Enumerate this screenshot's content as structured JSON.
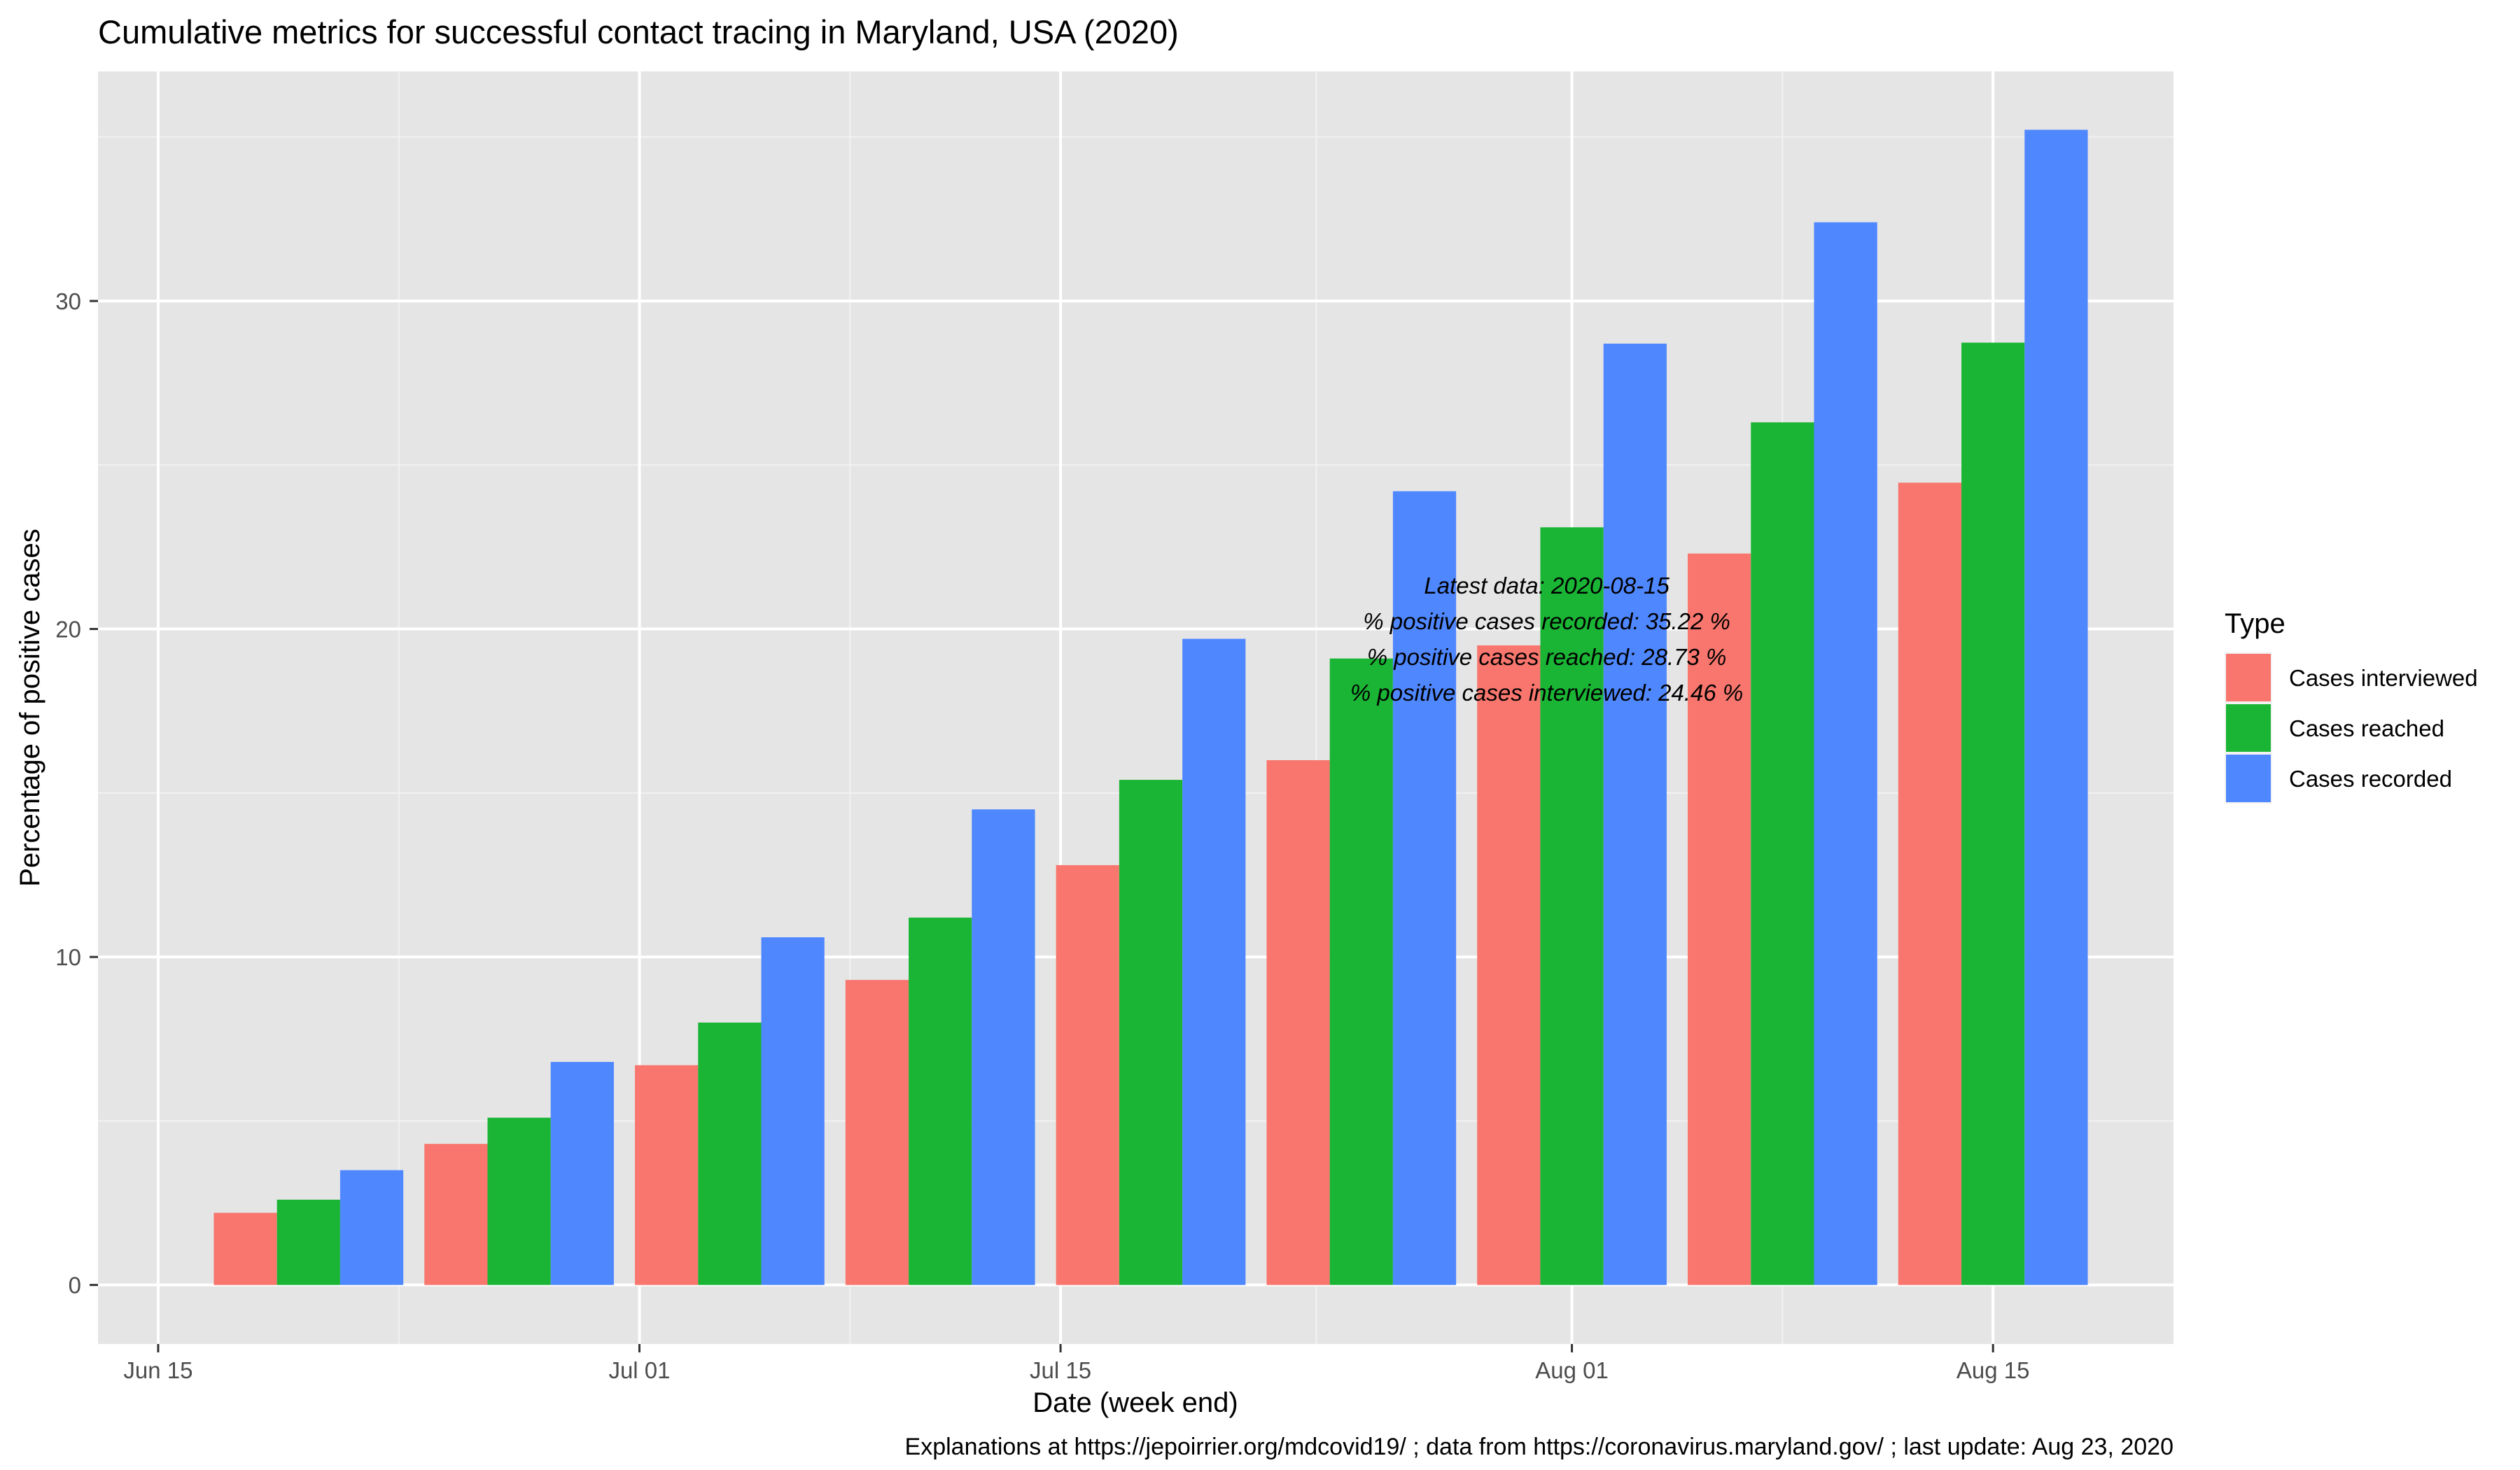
{
  "chart_data": {
    "type": "bar",
    "title": "Cumulative metrics for successful contact tracing in Maryland, USA (2020)",
    "xlabel": "Date (week end)",
    "ylabel": "Percentage of positive cases",
    "caption": "Explanations at https://jepoirrier.org/mdcovid19/ ; data from https://coronavirus.maryland.gov/ ; last update: Aug 23, 2020",
    "x_ticks": [
      {
        "date": "2020-06-15",
        "label": "Jun 15"
      },
      {
        "date": "2020-07-01",
        "label": "Jul 01"
      },
      {
        "date": "2020-07-15",
        "label": "Jul 15"
      },
      {
        "date": "2020-08-01",
        "label": "Aug 01"
      },
      {
        "date": "2020-08-15",
        "label": "Aug 15"
      }
    ],
    "x_range": [
      "2020-06-13",
      "2020-08-21"
    ],
    "y_ticks": [
      0,
      10,
      20,
      30
    ],
    "ylim": [
      -1.8,
      37
    ],
    "grid": true,
    "legend": {
      "title": "Type",
      "position": "right"
    },
    "categories": [
      "2020-06-20",
      "2020-06-27",
      "2020-07-04",
      "2020-07-11",
      "2020-07-18",
      "2020-07-25",
      "2020-08-01",
      "2020-08-08",
      "2020-08-15"
    ],
    "series": [
      {
        "name": "Cases interviewed",
        "color": "#F8766D",
        "values": [
          2.2,
          4.3,
          6.7,
          9.3,
          12.8,
          16.0,
          19.5,
          22.3,
          24.46
        ]
      },
      {
        "name": "Cases reached",
        "color": "#1AB535",
        "values": [
          2.6,
          5.1,
          8.0,
          11.2,
          15.4,
          19.1,
          23.1,
          26.3,
          28.73
        ]
      },
      {
        "name": "Cases recorded",
        "color": "#4F87FF",
        "values": [
          3.5,
          6.8,
          10.6,
          14.5,
          19.7,
          24.2,
          28.7,
          32.4,
          35.22
        ]
      }
    ],
    "annotation": [
      "Latest data: 2020-08-15",
      "% positive cases recorded: 35.22 %",
      "% positive cases reached: 28.73 %",
      "% positive cases interviewed: 24.46 %"
    ],
    "annotation_anchor": {
      "date": "2020-08-01",
      "value": 19.7
    }
  }
}
